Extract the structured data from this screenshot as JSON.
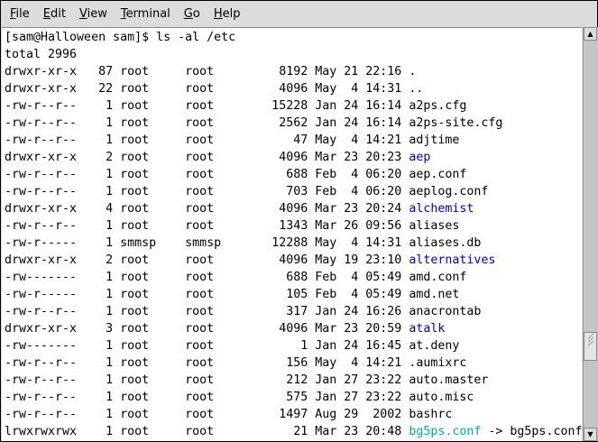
{
  "menu": [
    {
      "label": "File",
      "key": "F",
      "rest": "ile"
    },
    {
      "label": "Edit",
      "key": "E",
      "rest": "dit"
    },
    {
      "label": "View",
      "key": "V",
      "rest": "iew"
    },
    {
      "label": "Terminal",
      "key": "T",
      "rest": "erminal"
    },
    {
      "label": "Go",
      "key": "G",
      "rest": "o"
    },
    {
      "label": "Help",
      "key": "H",
      "rest": "elp"
    }
  ],
  "terminal": {
    "prompt": "[sam@Halloween sam]$ ls -al /etc",
    "total": "total 2996",
    "entries": [
      {
        "perms": "drwxr-xr-x",
        "links": "87",
        "owner": "root",
        "group": "root",
        "size": "8192",
        "month": "May",
        "day": "21",
        "time": "22:16",
        "name": ".",
        "type": "plain"
      },
      {
        "perms": "drwxr-xr-x",
        "links": "22",
        "owner": "root",
        "group": "root",
        "size": "4096",
        "month": "May",
        "day": "4",
        "time": "14:31",
        "name": "..",
        "type": "plain"
      },
      {
        "perms": "-rw-r--r--",
        "links": "1",
        "owner": "root",
        "group": "root",
        "size": "15228",
        "month": "Jan",
        "day": "24",
        "time": "16:14",
        "name": "a2ps.cfg",
        "type": "plain"
      },
      {
        "perms": "-rw-r--r--",
        "links": "1",
        "owner": "root",
        "group": "root",
        "size": "2562",
        "month": "Jan",
        "day": "24",
        "time": "16:14",
        "name": "a2ps-site.cfg",
        "type": "plain"
      },
      {
        "perms": "-rw-r--r--",
        "links": "1",
        "owner": "root",
        "group": "root",
        "size": "47",
        "month": "May",
        "day": "4",
        "time": "14:21",
        "name": "adjtime",
        "type": "plain"
      },
      {
        "perms": "drwxr-xr-x",
        "links": "2",
        "owner": "root",
        "group": "root",
        "size": "4096",
        "month": "Mar",
        "day": "23",
        "time": "20:23",
        "name": "aep",
        "type": "dir"
      },
      {
        "perms": "-rw-r--r--",
        "links": "1",
        "owner": "root",
        "group": "root",
        "size": "688",
        "month": "Feb",
        "day": "4",
        "time": "06:20",
        "name": "aep.conf",
        "type": "plain"
      },
      {
        "perms": "-rw-r--r--",
        "links": "1",
        "owner": "root",
        "group": "root",
        "size": "703",
        "month": "Feb",
        "day": "4",
        "time": "06:20",
        "name": "aeplog.conf",
        "type": "plain"
      },
      {
        "perms": "drwxr-xr-x",
        "links": "4",
        "owner": "root",
        "group": "root",
        "size": "4096",
        "month": "Mar",
        "day": "23",
        "time": "20:24",
        "name": "alchemist",
        "type": "dir"
      },
      {
        "perms": "-rw-r--r--",
        "links": "1",
        "owner": "root",
        "group": "root",
        "size": "1343",
        "month": "Mar",
        "day": "26",
        "time": "09:56",
        "name": "aliases",
        "type": "plain"
      },
      {
        "perms": "-rw-r-----",
        "links": "1",
        "owner": "smmsp",
        "group": "smmsp",
        "size": "12288",
        "month": "May",
        "day": "4",
        "time": "14:31",
        "name": "aliases.db",
        "type": "plain"
      },
      {
        "perms": "drwxr-xr-x",
        "links": "2",
        "owner": "root",
        "group": "root",
        "size": "4096",
        "month": "May",
        "day": "19",
        "time": "23:10",
        "name": "alternatives",
        "type": "dir"
      },
      {
        "perms": "-rw-------",
        "links": "1",
        "owner": "root",
        "group": "root",
        "size": "688",
        "month": "Feb",
        "day": "4",
        "time": "05:49",
        "name": "amd.conf",
        "type": "plain"
      },
      {
        "perms": "-rw-r-----",
        "links": "1",
        "owner": "root",
        "group": "root",
        "size": "105",
        "month": "Feb",
        "day": "4",
        "time": "05:49",
        "name": "amd.net",
        "type": "plain"
      },
      {
        "perms": "-rw-r--r--",
        "links": "1",
        "owner": "root",
        "group": "root",
        "size": "317",
        "month": "Jan",
        "day": "24",
        "time": "16:26",
        "name": "anacrontab",
        "type": "plain"
      },
      {
        "perms": "drwxr-xr-x",
        "links": "3",
        "owner": "root",
        "group": "root",
        "size": "4096",
        "month": "Mar",
        "day": "23",
        "time": "20:59",
        "name": "atalk",
        "type": "dir"
      },
      {
        "perms": "-rw-------",
        "links": "1",
        "owner": "root",
        "group": "root",
        "size": "1",
        "month": "Jan",
        "day": "24",
        "time": "16:45",
        "name": "at.deny",
        "type": "plain"
      },
      {
        "perms": "-rw-r--r--",
        "links": "1",
        "owner": "root",
        "group": "root",
        "size": "156",
        "month": "May",
        "day": "4",
        "time": "14:21",
        "name": ".aumixrc",
        "type": "plain"
      },
      {
        "perms": "-rw-r--r--",
        "links": "1",
        "owner": "root",
        "group": "root",
        "size": "212",
        "month": "Jan",
        "day": "27",
        "time": "23:22",
        "name": "auto.master",
        "type": "plain"
      },
      {
        "perms": "-rw-r--r--",
        "links": "1",
        "owner": "root",
        "group": "root",
        "size": "575",
        "month": "Jan",
        "day": "27",
        "time": "23:22",
        "name": "auto.misc",
        "type": "plain"
      },
      {
        "perms": "-rw-r--r--",
        "links": "1",
        "owner": "root",
        "group": "root",
        "size": "1497",
        "month": "Aug",
        "day": "29",
        "time": "2002",
        "name": "bashrc",
        "type": "plain"
      },
      {
        "perms": "lrwxrwxrwx",
        "links": "1",
        "owner": "root",
        "group": "root",
        "size": "21",
        "month": "Mar",
        "day": "23",
        "time": "20:48",
        "name": "bg5ps.conf",
        "type": "link",
        "target": "bg5ps.conf"
      }
    ]
  },
  "colors": {
    "directory": "#0000c8",
    "symlink": "#00a8a8"
  },
  "scrollbar": {
    "position": "bottom"
  }
}
